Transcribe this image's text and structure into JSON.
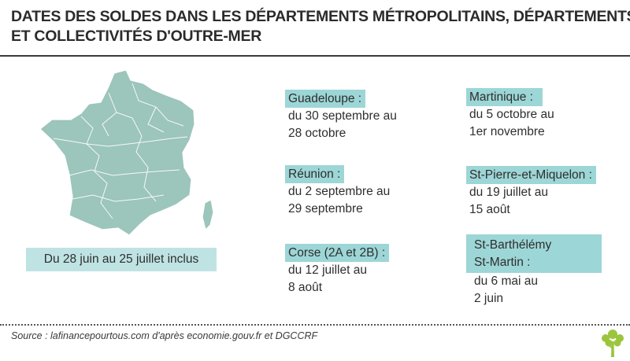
{
  "title": {
    "line1": "DATES DES SOLDES DANS LES DÉPARTEMENTS MÉTROPOLITAINS, DÉPARTEMENTS",
    "line2": "ET COLLECTIVITÉS D'OUTRE-MER"
  },
  "metropole": {
    "dates": "Du 28 juin au 25 juillet inclus"
  },
  "territories": [
    {
      "name": "Guadeloupe :",
      "dates": [
        "du 30 septembre  au",
        "28 octobre"
      ]
    },
    {
      "name": "Martinique :",
      "dates": [
        "du 5 octobre  au",
        "1er novembre"
      ]
    },
    {
      "name": "Réunion :",
      "dates": [
        "du 2 septembre au",
        "29 septembre"
      ]
    },
    {
      "name": "St-Pierre-et-Miquelon :",
      "dates": [
        "du 19 juillet au",
        "15 août"
      ]
    },
    {
      "name": "Corse (2A et 2B) :",
      "dates": [
        "du 12 juillet  au",
        "8 août"
      ]
    },
    {
      "name": [
        "St-Barthélémy",
        "St-Martin :"
      ],
      "dates": [
        "du 6 mai au",
        "2 juin"
      ]
    }
  ],
  "source": "Source : lafinancepourtous.com d'après economie.gouv.fr et DGCCRF",
  "icons": {
    "map": "france-map-icon",
    "logo": "tree-logo-icon"
  },
  "colors": {
    "highlight": "#9dd6d6",
    "map_fill": "#9cc5bb",
    "label_bg": "#bfe3e3"
  }
}
